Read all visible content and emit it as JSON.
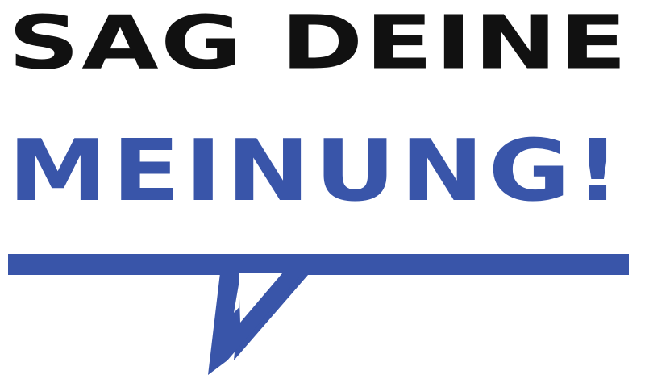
{
  "logo": {
    "line1": "SAG DEINE",
    "line2": "MEINUNG!",
    "icon": "speech-bubble-icon"
  },
  "colors": {
    "dark": "#111111",
    "blue": "#3955a9",
    "background": "#ffffff"
  }
}
